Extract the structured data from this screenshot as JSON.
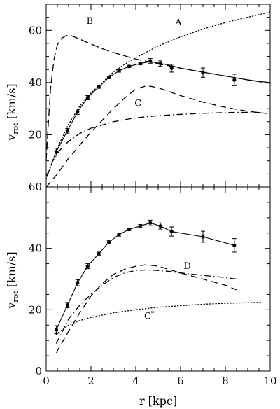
{
  "chart_data": [
    {
      "panel": "top",
      "type": "line",
      "xlabel": "",
      "ylabel": "v_rot [km/s]",
      "ylabel_main": "v",
      "ylabel_sub": "rot",
      "ylabel_rest": "[km/s]",
      "xlim": [
        0,
        10
      ],
      "ylim": [
        0,
        70
      ],
      "yticks": [
        20,
        40,
        60
      ],
      "xticks": [
        0,
        2,
        4,
        6,
        8,
        10
      ],
      "observed": {
        "x": [
          0.45,
          0.95,
          1.4,
          1.85,
          2.35,
          2.8,
          3.25,
          3.7,
          4.2,
          4.65,
          5.1,
          5.6,
          7.0,
          8.4
        ],
        "y": [
          13.5,
          21.5,
          28.8,
          34.2,
          38.3,
          42.0,
          44.5,
          46.2,
          47.3,
          48.3,
          47.3,
          45.5,
          43.8,
          41.0
        ],
        "err": [
          1.3,
          0.9,
          1.0,
          0.8,
          0.5,
          0.5,
          0.5,
          0.4,
          0.5,
          0.9,
          1.0,
          1.5,
          1.8,
          2.2
        ]
      },
      "series": [
        {
          "name": "A",
          "style": "dotted",
          "x": [
            0,
            0.5,
            1,
            1.5,
            2,
            2.5,
            3,
            3.5,
            4,
            5,
            6,
            7,
            8,
            9,
            10
          ],
          "y": [
            3,
            15,
            24,
            31,
            36,
            40,
            44,
            47,
            49.5,
            54,
            57.5,
            60.5,
            63,
            65,
            67
          ]
        },
        {
          "name": "B",
          "style": "long-dash",
          "x": [
            0,
            0.1,
            0.2,
            0.35,
            0.5,
            0.7,
            0.9,
            1.1,
            1.4,
            1.8,
            2.5,
            3,
            4,
            5,
            6,
            7,
            8,
            9,
            10
          ],
          "y": [
            10,
            25,
            38,
            49,
            54.5,
            57,
            58,
            58,
            57,
            55.5,
            53,
            51.5,
            49,
            47.2,
            45.5,
            44,
            42.5,
            41,
            39.7
          ]
        },
        {
          "name": "",
          "style": "dash",
          "role": "model sum",
          "x": [
            0,
            0.5,
            1,
            1.5,
            2,
            2.5,
            3,
            3.5,
            4,
            4.5,
            5,
            5.5,
            6,
            7,
            8,
            9,
            10
          ],
          "y": [
            0,
            5,
            11,
            16,
            21,
            25.5,
            30,
            34,
            37.5,
            38.8,
            38,
            36.5,
            35,
            32.5,
            30.5,
            29,
            28
          ]
        },
        {
          "name": "C",
          "style": "dash-dot",
          "x": [
            0,
            0.3,
            0.6,
            1,
            1.5,
            2,
            3,
            4,
            5,
            6,
            7,
            8,
            9,
            9.6
          ],
          "y": [
            4,
            10,
            14,
            17.5,
            20.5,
            22.5,
            25,
            26.5,
            27.3,
            27.8,
            28.2,
            28.5,
            28.6,
            28.5
          ]
        },
        {
          "name": "",
          "style": "solid",
          "role": "fit",
          "x": [
            0.45,
            0.95,
            1.4,
            1.85,
            2.35,
            2.8,
            3.25,
            3.7,
            4.2,
            4.65,
            5.1,
            5.6,
            6,
            7,
            8,
            9,
            10
          ],
          "y": [
            13.5,
            21.5,
            28.8,
            34.2,
            38.3,
            42.0,
            44.5,
            46.2,
            47.3,
            48.0,
            47.3,
            46.5,
            45.5,
            44,
            42.5,
            41,
            40
          ]
        }
      ]
    },
    {
      "panel": "bottom",
      "type": "line",
      "xlabel": "r [kpc]",
      "ylabel": "v_rot [km/s]",
      "ylabel_main": "v",
      "ylabel_sub": "rot",
      "ylabel_rest": "[km/s]",
      "xlim": [
        0,
        10
      ],
      "ylim": [
        0,
        60
      ],
      "yticks": [
        0,
        20,
        40,
        60
      ],
      "xticks": [
        0,
        2,
        4,
        6,
        8,
        10
      ],
      "observed": {
        "x": [
          0.45,
          0.95,
          1.4,
          1.85,
          2.35,
          2.8,
          3.25,
          3.7,
          4.2,
          4.65,
          5.1,
          5.6,
          7.0,
          8.4
        ],
        "y": [
          13.5,
          21.5,
          28.8,
          34.2,
          38.3,
          42.0,
          44.5,
          46.2,
          47.3,
          48.3,
          47.3,
          45.5,
          43.8,
          41.0
        ],
        "err": [
          1.3,
          0.9,
          1.0,
          0.8,
          0.5,
          0.5,
          0.5,
          0.4,
          0.5,
          0.9,
          1.0,
          1.5,
          1.8,
          2.2
        ]
      },
      "series": [
        {
          "name": "",
          "style": "solid",
          "role": "fit",
          "x": [
            0.45,
            0.95,
            1.4,
            1.85,
            2.35,
            2.8,
            3.25,
            3.7,
            4.2,
            4.65,
            5.1,
            5.6,
            7.0,
            8.4
          ],
          "y": [
            13.5,
            21.5,
            28.8,
            34.2,
            38.3,
            42.0,
            44.5,
            46.2,
            47.3,
            48.3,
            47.3,
            45.5,
            43.8,
            41.0
          ]
        },
        {
          "name": "",
          "style": "dash",
          "role": "model sum",
          "x": [
            0.45,
            1,
            1.5,
            2,
            2.5,
            3,
            3.5,
            4,
            4.5,
            5,
            6,
            7,
            8,
            8.5
          ],
          "y": [
            6,
            13,
            19,
            24.5,
            28.5,
            31.5,
            33.2,
            34.2,
            34.7,
            34.2,
            32,
            30,
            28,
            26.5
          ]
        },
        {
          "name": "D",
          "style": "dash-dot",
          "x": [
            0.45,
            1,
            1.5,
            2,
            2.5,
            3,
            3.5,
            4,
            4.5,
            5,
            5.5,
            6,
            7,
            8,
            8.5
          ],
          "y": [
            9,
            17,
            21.5,
            25,
            28,
            30.5,
            32,
            32.8,
            33,
            32.8,
            32.5,
            32,
            31.2,
            30.5,
            30
          ]
        },
        {
          "name": "C*",
          "style": "dotted",
          "x": [
            0.45,
            1,
            1.5,
            2,
            3,
            4,
            5,
            6,
            7,
            8,
            9,
            9.6
          ],
          "y": [
            12,
            15,
            16.5,
            17.5,
            19,
            20,
            20.8,
            21.3,
            21.8,
            22.1,
            22.3,
            22.4
          ]
        }
      ]
    }
  ],
  "labels": {
    "top": [
      {
        "text": "A",
        "x": 5.9,
        "y": 62.0
      },
      {
        "text": "B",
        "x": 1.95,
        "y": 62.5
      },
      {
        "text": "C",
        "x": 4.1,
        "y": 31.0
      }
    ],
    "bottom": [
      {
        "text": "D",
        "x": 6.3,
        "y": 33.3
      },
      {
        "text": "C",
        "sup": "*",
        "x": 4.6,
        "y": 17.0
      }
    ]
  }
}
